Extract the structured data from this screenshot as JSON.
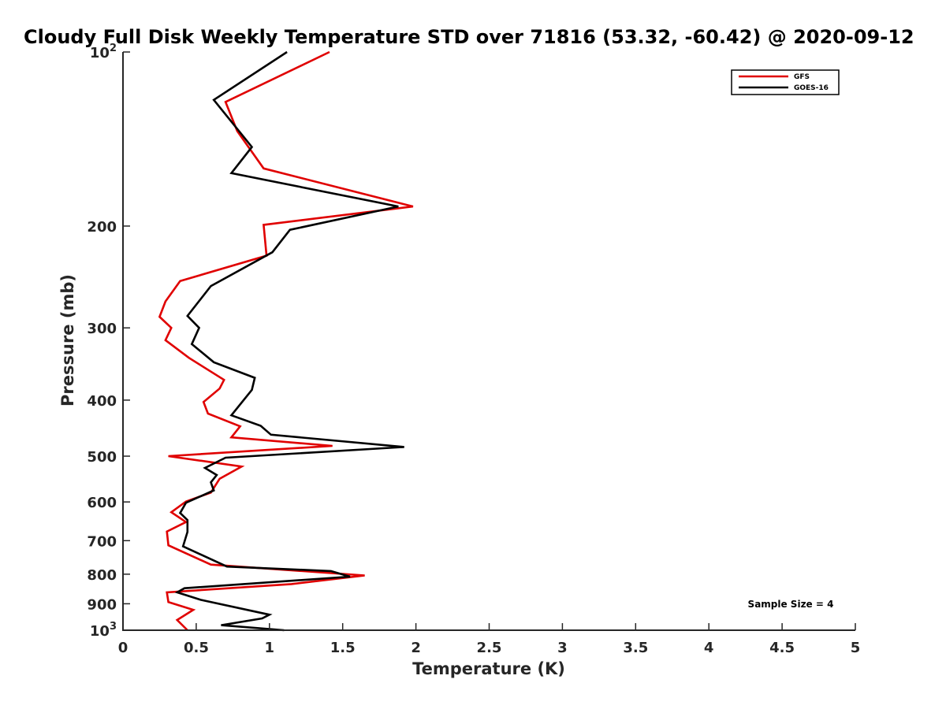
{
  "chart_data": {
    "type": "line",
    "title": "Cloudy Full Disk Weekly Temperature STD over 71816 (53.32, -60.42) @ 2020-09-12",
    "xlabel": "Temperature (K)",
    "ylabel": "Pressure (mb)",
    "xlim": [
      0,
      5
    ],
    "ylim": [
      1000,
      100
    ],
    "y_scale": "log",
    "y_reversed": true,
    "x_ticks": [
      "0",
      "0.5",
      "1",
      "1.5",
      "2",
      "2.5",
      "3",
      "3.5",
      "4",
      "4.5",
      "5"
    ],
    "y_ticks": [
      {
        "value": 100,
        "label": "10",
        "sup": "2"
      },
      {
        "value": 200,
        "label": "200",
        "sup": ""
      },
      {
        "value": 300,
        "label": "300",
        "sup": ""
      },
      {
        "value": 400,
        "label": "400",
        "sup": ""
      },
      {
        "value": 500,
        "label": "500",
        "sup": ""
      },
      {
        "value": 600,
        "label": "600",
        "sup": ""
      },
      {
        "value": 700,
        "label": "700",
        "sup": ""
      },
      {
        "value": 800,
        "label": "800",
        "sup": ""
      },
      {
        "value": 900,
        "label": "900",
        "sup": ""
      },
      {
        "value": 1000,
        "label": "10",
        "sup": "3"
      }
    ],
    "grid": false,
    "legend_position": "top-right",
    "annotation": "Sample Size = 4",
    "series": [
      {
        "name": "GFS",
        "color": "#e00000",
        "points": [
          [
            1.41,
            100
          ],
          [
            0.7,
            122
          ],
          [
            0.78,
            137
          ],
          [
            0.96,
            159
          ],
          [
            1.98,
            185
          ],
          [
            0.96,
            199
          ],
          [
            0.98,
            225
          ],
          [
            0.39,
            249
          ],
          [
            0.29,
            270
          ],
          [
            0.25,
            287
          ],
          [
            0.33,
            300
          ],
          [
            0.29,
            315
          ],
          [
            0.45,
            338
          ],
          [
            0.69,
            369
          ],
          [
            0.66,
            382
          ],
          [
            0.55,
            403
          ],
          [
            0.58,
            422
          ],
          [
            0.8,
            444
          ],
          [
            0.74,
            464
          ],
          [
            1.43,
            480
          ],
          [
            0.31,
            500
          ],
          [
            0.81,
            521
          ],
          [
            0.66,
            547
          ],
          [
            0.6,
            578
          ],
          [
            0.43,
            599
          ],
          [
            0.33,
            625
          ],
          [
            0.43,
            650
          ],
          [
            0.3,
            675
          ],
          [
            0.31,
            713
          ],
          [
            0.6,
            770
          ],
          [
            1.65,
            804
          ],
          [
            1.15,
            832
          ],
          [
            0.3,
            860
          ],
          [
            0.31,
            894
          ],
          [
            0.48,
            922
          ],
          [
            0.37,
            960
          ],
          [
            0.44,
            1000
          ]
        ]
      },
      {
        "name": "GOES-16",
        "color": "#000000",
        "points": [
          [
            1.12,
            100
          ],
          [
            0.62,
            121
          ],
          [
            0.88,
            146
          ],
          [
            0.74,
            162
          ],
          [
            1.88,
            185
          ],
          [
            1.14,
            203
          ],
          [
            1.02,
            222
          ],
          [
            0.6,
            254
          ],
          [
            0.44,
            286
          ],
          [
            0.52,
            300
          ],
          [
            0.47,
            320
          ],
          [
            0.62,
            344
          ],
          [
            0.9,
            366
          ],
          [
            0.88,
            384
          ],
          [
            0.74,
            425
          ],
          [
            0.94,
            443
          ],
          [
            1.01,
            459
          ],
          [
            1.92,
            482
          ],
          [
            0.7,
            503
          ],
          [
            0.56,
            524
          ],
          [
            0.64,
            539
          ],
          [
            0.6,
            555
          ],
          [
            0.62,
            573
          ],
          [
            0.43,
            602
          ],
          [
            0.39,
            627
          ],
          [
            0.44,
            645
          ],
          [
            0.44,
            676
          ],
          [
            0.41,
            716
          ],
          [
            0.71,
            776
          ],
          [
            1.42,
            790
          ],
          [
            1.55,
            808
          ],
          [
            0.42,
            846
          ],
          [
            0.37,
            860
          ],
          [
            0.53,
            886
          ],
          [
            1.0,
            940
          ],
          [
            0.95,
            954
          ],
          [
            0.67,
            980
          ],
          [
            1.1,
            1000
          ]
        ]
      }
    ]
  }
}
